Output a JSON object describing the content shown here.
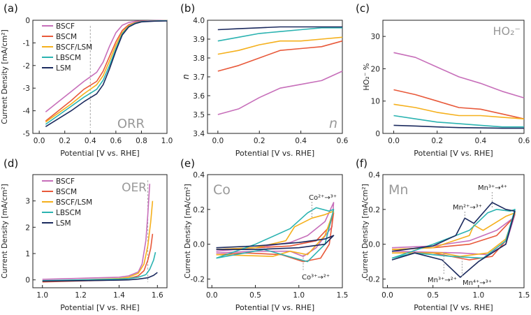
{
  "colors": {
    "BSCF": "#c76fba",
    "BSCM": "#e8593a",
    "BSCF/LSM": "#f5b01c",
    "LBSCM": "#2bb3b1",
    "LSM": "#1b2a5e"
  },
  "legend_entries": [
    "BSCF",
    "BSCM",
    "BSCF/LSM",
    "LBSCM",
    "LSM"
  ],
  "chart_data": [
    {
      "panel": "(a)",
      "type": "line",
      "annotation": "ORR",
      "xlabel": "Potential [V vs. RHE]",
      "ylabel": "Current Density [mA/cm²]",
      "xlim": [
        -0.05,
        1.0
      ],
      "ylim": [
        -5,
        0
      ],
      "xticks": [
        "0.0",
        "0.2",
        "0.4",
        "0.6",
        "0.8",
        "1.0"
      ],
      "yticks": [
        "0",
        "-1",
        "-2",
        "-3",
        "-4",
        "-5"
      ],
      "xtick_values": [
        0,
        0.2,
        0.4,
        0.6,
        0.8,
        1.0
      ],
      "ytick_values": [
        0,
        -1,
        -2,
        -3,
        -4,
        -5
      ],
      "legend": true,
      "vline": 0.4,
      "series": [
        {
          "name": "BSCF",
          "x": [
            0.05,
            0.15,
            0.25,
            0.35,
            0.45,
            0.5,
            0.55,
            0.6,
            0.65,
            0.7,
            0.75,
            0.8,
            0.9,
            1.0
          ],
          "y": [
            -4.05,
            -3.6,
            -3.15,
            -2.7,
            -2.3,
            -1.85,
            -1.15,
            -0.55,
            -0.22,
            -0.1,
            -0.05,
            -0.03,
            -0.02,
            -0.01
          ]
        },
        {
          "name": "BSCM",
          "x": [
            0.05,
            0.15,
            0.25,
            0.35,
            0.45,
            0.5,
            0.55,
            0.6,
            0.65,
            0.7,
            0.75,
            0.8,
            0.9,
            1.0
          ],
          "y": [
            -4.45,
            -4.0,
            -3.55,
            -3.05,
            -2.7,
            -2.25,
            -1.6,
            -0.95,
            -0.45,
            -0.2,
            -0.1,
            -0.05,
            -0.03,
            -0.02
          ]
        },
        {
          "name": "BSCF/LSM",
          "x": [
            0.05,
            0.15,
            0.25,
            0.35,
            0.45,
            0.5,
            0.55,
            0.6,
            0.65,
            0.7,
            0.75,
            0.8,
            0.9,
            1.0
          ],
          "y": [
            -4.5,
            -4.1,
            -3.7,
            -3.25,
            -2.85,
            -2.45,
            -1.8,
            -1.1,
            -0.55,
            -0.25,
            -0.12,
            -0.06,
            -0.03,
            -0.02
          ]
        },
        {
          "name": "LBSCM",
          "x": [
            0.05,
            0.15,
            0.25,
            0.35,
            0.45,
            0.5,
            0.55,
            0.6,
            0.65,
            0.7,
            0.75,
            0.8,
            0.9,
            1.0
          ],
          "y": [
            -4.6,
            -4.2,
            -3.8,
            -3.4,
            -3.05,
            -2.65,
            -2.0,
            -1.25,
            -0.6,
            -0.28,
            -0.13,
            -0.06,
            -0.03,
            -0.02
          ]
        },
        {
          "name": "LSM",
          "x": [
            0.05,
            0.15,
            0.25,
            0.35,
            0.45,
            0.5,
            0.55,
            0.6,
            0.65,
            0.7,
            0.75,
            0.8,
            0.9,
            1.0
          ],
          "y": [
            -4.7,
            -4.35,
            -4.0,
            -3.6,
            -3.25,
            -2.85,
            -2.15,
            -1.35,
            -0.65,
            -0.3,
            -0.15,
            -0.07,
            -0.04,
            -0.03
          ]
        }
      ]
    },
    {
      "panel": "(b)",
      "type": "line",
      "annotation": "n",
      "xlabel": "Potential [V vs. RHE]",
      "ylabel": "n",
      "xlim": [
        -0.05,
        0.6
      ],
      "ylim": [
        3.4,
        4.0
      ],
      "xticks": [
        "0.0",
        "0.2",
        "0.4",
        "0.6"
      ],
      "yticks": [
        "3.4",
        "3.5",
        "3.6",
        "3.7",
        "3.8",
        "3.9",
        "4.0"
      ],
      "xtick_values": [
        0,
        0.2,
        0.4,
        0.6
      ],
      "ytick_values": [
        3.4,
        3.5,
        3.6,
        3.7,
        3.8,
        3.9,
        4.0
      ],
      "series": [
        {
          "name": "BSCF",
          "x": [
            0.0,
            0.1,
            0.2,
            0.3,
            0.4,
            0.5,
            0.6
          ],
          "y": [
            3.5,
            3.53,
            3.59,
            3.64,
            3.66,
            3.68,
            3.73
          ]
        },
        {
          "name": "BSCM",
          "x": [
            0.0,
            0.1,
            0.2,
            0.3,
            0.4,
            0.5,
            0.6
          ],
          "y": [
            3.73,
            3.76,
            3.8,
            3.84,
            3.85,
            3.86,
            3.89
          ]
        },
        {
          "name": "BSCF/LSM",
          "x": [
            0.0,
            0.1,
            0.2,
            0.3,
            0.4,
            0.5,
            0.6
          ],
          "y": [
            3.82,
            3.84,
            3.87,
            3.89,
            3.89,
            3.9,
            3.91
          ]
        },
        {
          "name": "LBSCM",
          "x": [
            0.0,
            0.1,
            0.2,
            0.3,
            0.4,
            0.5,
            0.6
          ],
          "y": [
            3.89,
            3.91,
            3.93,
            3.94,
            3.95,
            3.96,
            3.96
          ]
        },
        {
          "name": "LSM",
          "x": [
            0.0,
            0.1,
            0.2,
            0.3,
            0.4,
            0.5,
            0.6
          ],
          "y": [
            3.95,
            3.955,
            3.96,
            3.965,
            3.965,
            3.965,
            3.965
          ]
        }
      ]
    },
    {
      "panel": "(c)",
      "type": "line",
      "annotation": "HO₂⁻",
      "xlabel": "Potential [V vs. RHE]",
      "ylabel": "HO₂⁻ %",
      "xlim": [
        -0.05,
        0.6
      ],
      "ylim": [
        0,
        35
      ],
      "xticks": [
        "0.0",
        "0.2",
        "0.4",
        "0.6"
      ],
      "yticks": [
        "0",
        "10",
        "20",
        "30"
      ],
      "xtick_values": [
        0,
        0.2,
        0.4,
        0.6
      ],
      "ytick_values": [
        0,
        10,
        20,
        30
      ],
      "series": [
        {
          "name": "BSCF",
          "x": [
            0.0,
            0.1,
            0.2,
            0.3,
            0.4,
            0.5,
            0.6
          ],
          "y": [
            25,
            23.5,
            20.5,
            17.5,
            15.5,
            13,
            11
          ]
        },
        {
          "name": "BSCM",
          "x": [
            0.0,
            0.1,
            0.2,
            0.3,
            0.4,
            0.5,
            0.6
          ],
          "y": [
            13.5,
            12,
            10,
            8,
            7.5,
            6,
            4.5
          ]
        },
        {
          "name": "BSCF/LSM",
          "x": [
            0.0,
            0.1,
            0.2,
            0.3,
            0.4,
            0.5,
            0.6
          ],
          "y": [
            9,
            8,
            6.5,
            5.5,
            5.5,
            5,
            4.5
          ]
        },
        {
          "name": "LBSCM",
          "x": [
            0.0,
            0.1,
            0.2,
            0.3,
            0.4,
            0.5,
            0.6
          ],
          "y": [
            5.5,
            4.5,
            3.5,
            3,
            2.5,
            2,
            2
          ]
        },
        {
          "name": "LSM",
          "x": [
            0.0,
            0.1,
            0.2,
            0.3,
            0.4,
            0.5,
            0.6
          ],
          "y": [
            2.5,
            2.3,
            2,
            1.8,
            1.7,
            1.6,
            1.6
          ]
        }
      ]
    },
    {
      "panel": "(d)",
      "type": "line",
      "annotation": "OER",
      "xlabel": "Potential [V vs. RHE]",
      "ylabel": "Current Density [mA/cm²]",
      "xlim": [
        0.95,
        1.65
      ],
      "ylim": [
        -0.3,
        4.0
      ],
      "xticks": [
        "1.0",
        "1.2",
        "1.4",
        "1.6"
      ],
      "yticks": [
        "0",
        "1",
        "2",
        "3"
      ],
      "xtick_values": [
        1.0,
        1.2,
        1.4,
        1.6
      ],
      "ytick_values": [
        0,
        1,
        2,
        3
      ],
      "legend": true,
      "vline": 1.55,
      "series": [
        {
          "name": "BSCF",
          "x": [
            1.0,
            1.2,
            1.4,
            1.45,
            1.5,
            1.52,
            1.54,
            1.55,
            1.56
          ],
          "y": [
            0.02,
            0.06,
            0.1,
            0.15,
            0.3,
            0.6,
            1.5,
            2.5,
            3.65
          ]
        },
        {
          "name": "BSCM",
          "x": [
            1.0,
            1.2,
            1.4,
            1.45,
            1.5,
            1.53,
            1.55,
            1.565,
            1.575
          ],
          "y": [
            -0.08,
            -0.04,
            0.0,
            0.05,
            0.15,
            0.35,
            0.75,
            1.2,
            1.75
          ]
        },
        {
          "name": "BSCF/LSM",
          "x": [
            1.0,
            1.2,
            1.4,
            1.45,
            1.5,
            1.53,
            1.55,
            1.565,
            1.575
          ],
          "y": [
            -0.05,
            0.0,
            0.05,
            0.1,
            0.25,
            0.6,
            1.3,
            2.2,
            3.0
          ]
        },
        {
          "name": "LBSCM",
          "x": [
            1.0,
            1.2,
            1.4,
            1.45,
            1.5,
            1.54,
            1.56,
            1.58,
            1.59
          ],
          "y": [
            -0.03,
            0.0,
            0.03,
            0.05,
            0.1,
            0.2,
            0.4,
            0.75,
            1.05
          ]
        },
        {
          "name": "LSM",
          "x": [
            1.0,
            1.2,
            1.4,
            1.45,
            1.5,
            1.55,
            1.58,
            1.6
          ],
          "y": [
            -0.05,
            -0.03,
            -0.01,
            0.0,
            0.03,
            0.08,
            0.17,
            0.28
          ]
        }
      ]
    },
    {
      "panel": "(e)",
      "type": "line",
      "annotation": "Co",
      "xlabel": "Potential [V vs. RHE]",
      "ylabel": "Current Density [mA/cm²]",
      "xlim": [
        -0.05,
        1.5
      ],
      "ylim": [
        -0.25,
        0.4
      ],
      "xticks": [
        "0.0",
        "0.5",
        "1.0",
        "1.5"
      ],
      "yticks": [
        "-0.2",
        "0.0",
        "0.2",
        "0.4"
      ],
      "xtick_values": [
        0,
        0.5,
        1.0,
        1.5
      ],
      "ytick_values": [
        -0.2,
        0,
        0.2,
        0.4
      ],
      "labels": [
        "Co²⁺→³⁺",
        "Co³⁺→²⁺"
      ],
      "series": [
        {
          "name": "BSCF",
          "x": [
            0.05,
            0.5,
            0.9,
            1.1,
            1.3,
            1.4,
            1.38,
            1.2,
            1.05,
            0.9,
            0.5,
            0.05
          ],
          "y": [
            -0.04,
            -0.02,
            0.01,
            0.05,
            0.13,
            0.24,
            0.1,
            -0.02,
            -0.07,
            -0.04,
            -0.04,
            -0.05
          ]
        },
        {
          "name": "BSCM",
          "x": [
            0.05,
            0.5,
            0.9,
            1.2,
            1.35,
            1.4,
            1.35,
            1.25,
            1.05,
            0.8,
            0.4,
            0.05
          ],
          "y": [
            -0.03,
            -0.02,
            -0.01,
            0.02,
            0.1,
            0.18,
            0.0,
            -0.08,
            -0.1,
            -0.06,
            -0.05,
            -0.06
          ]
        },
        {
          "name": "BSCF/LSM",
          "x": [
            0.05,
            0.5,
            0.85,
            0.95,
            1.15,
            1.3,
            1.4,
            1.3,
            1.1,
            0.9,
            0.7,
            0.05
          ],
          "y": [
            -0.03,
            -0.02,
            0.02,
            0.1,
            0.15,
            0.17,
            0.19,
            0.05,
            -0.06,
            -0.04,
            -0.07,
            -0.06
          ]
        },
        {
          "name": "LBSCM",
          "x": [
            0.05,
            0.5,
            0.9,
            1.1,
            1.2,
            1.35,
            1.4,
            1.3,
            1.1,
            0.6,
            0.05
          ],
          "y": [
            -0.08,
            0.0,
            0.09,
            0.18,
            0.21,
            0.19,
            0.2,
            0.0,
            -0.1,
            -0.03,
            -0.08
          ]
        },
        {
          "name": "LSM",
          "x": [
            0.05,
            0.5,
            1.0,
            1.3,
            1.4,
            1.3,
            1.0,
            0.5,
            0.05
          ],
          "y": [
            -0.02,
            -0.01,
            0.01,
            0.03,
            0.05,
            0.0,
            -0.02,
            -0.03,
            -0.03
          ]
        }
      ]
    },
    {
      "panel": "(f)",
      "type": "line",
      "annotation": "Mn",
      "xlabel": "Potential [V vs. RHE]",
      "ylabel": "Current Density [mA/cm²]",
      "xlim": [
        -0.05,
        1.5
      ],
      "ylim": [
        -0.25,
        0.4
      ],
      "xticks": [
        "0.0",
        "0.5",
        "1.0",
        "1.5"
      ],
      "yticks": [
        "-0.2",
        "0.0",
        "0.2",
        "0.4"
      ],
      "xtick_values": [
        0,
        0.5,
        1.0,
        1.5
      ],
      "ytick_values": [
        -0.2,
        0,
        0.2,
        0.4
      ],
      "labels": [
        "Mn³⁺→⁴⁺",
        "Mn²⁺→³⁺",
        "Mn³⁺→²⁺",
        "Mn⁴⁺→³⁺"
      ],
      "series": [
        {
          "name": "BSCF",
          "x": [
            0.05,
            0.5,
            0.9,
            1.2,
            1.38,
            1.4,
            1.3,
            1.1,
            0.8,
            0.05
          ],
          "y": [
            -0.02,
            -0.01,
            0.02,
            0.08,
            0.15,
            0.17,
            0.0,
            -0.06,
            -0.05,
            -0.04
          ]
        },
        {
          "name": "BSCM",
          "x": [
            0.05,
            0.5,
            0.9,
            1.2,
            1.38,
            1.4,
            1.3,
            1.15,
            0.9,
            0.5,
            0.05
          ],
          "y": [
            -0.03,
            -0.02,
            0.0,
            0.05,
            0.15,
            0.18,
            0.02,
            -0.07,
            -0.09,
            -0.05,
            -0.05
          ]
        },
        {
          "name": "BSCF/LSM",
          "x": [
            0.05,
            0.5,
            0.9,
            0.95,
            1.05,
            1.3,
            1.4,
            1.3,
            1.1,
            0.8,
            0.6,
            0.05
          ],
          "y": [
            -0.03,
            -0.02,
            0.05,
            0.11,
            0.08,
            0.16,
            0.18,
            0.03,
            -0.05,
            -0.07,
            -0.05,
            -0.05
          ]
        },
        {
          "name": "LBSCM",
          "x": [
            0.05,
            0.5,
            0.9,
            1.1,
            1.2,
            1.35,
            1.4,
            1.3,
            1.05,
            0.7,
            0.3,
            0.05
          ],
          "y": [
            -0.08,
            0.0,
            0.08,
            0.18,
            0.2,
            0.19,
            0.2,
            0.02,
            -0.08,
            -0.07,
            -0.05,
            -0.08
          ]
        },
        {
          "name": "LSM",
          "x": [
            0.05,
            0.5,
            0.75,
            0.85,
            0.95,
            1.15,
            1.3,
            1.4,
            1.3,
            1.0,
            0.8,
            0.6,
            0.3,
            0.05
          ],
          "y": [
            -0.04,
            -0.01,
            0.05,
            0.15,
            0.12,
            0.24,
            0.2,
            0.19,
            0.0,
            -0.1,
            -0.19,
            -0.09,
            -0.05,
            -0.09
          ]
        }
      ]
    }
  ]
}
